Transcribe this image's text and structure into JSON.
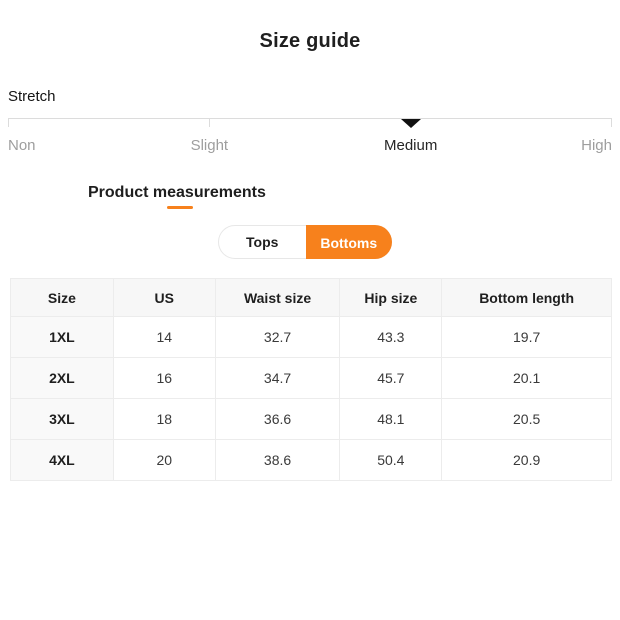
{
  "page": {
    "title": "Size guide"
  },
  "stretch": {
    "label": "Stretch",
    "selected_value": "Medium",
    "options": [
      {
        "label": "Non",
        "selected": false
      },
      {
        "label": "Slight",
        "selected": false
      },
      {
        "label": "Medium",
        "selected": true
      },
      {
        "label": "High",
        "selected": false
      }
    ]
  },
  "measurements": {
    "heading": "Product measurements",
    "tabs": [
      {
        "label": "Tops",
        "active": false
      },
      {
        "label": "Bottoms",
        "active": true
      }
    ],
    "table": {
      "columns": [
        "Size",
        "US",
        "Waist size",
        "Hip size",
        "Bottom length"
      ],
      "rows": [
        [
          "1XL",
          "14",
          "32.7",
          "43.3",
          "19.7"
        ],
        [
          "2XL",
          "16",
          "34.7",
          "45.7",
          "20.1"
        ],
        [
          "3XL",
          "18",
          "36.6",
          "48.1",
          "20.5"
        ],
        [
          "4XL",
          "20",
          "38.6",
          "50.4",
          "20.9"
        ]
      ]
    }
  },
  "colors": {
    "accent_orange": "#F7811C",
    "text_dark": "#1f1f1f",
    "text_gray": "#9e9e9e",
    "border": "#ececec",
    "header_bg": "#f7f7f7",
    "marker": "#111111"
  }
}
